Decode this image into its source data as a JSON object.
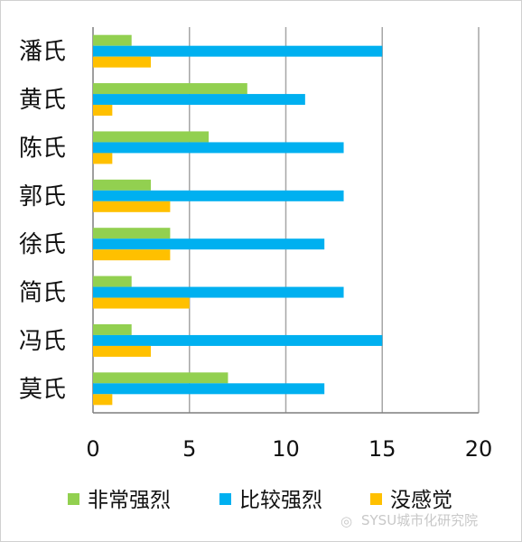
{
  "chart_data": {
    "type": "bar",
    "orientation": "horizontal",
    "categories": [
      "潘氏",
      "黄氏",
      "陈氏",
      "郭氏",
      "徐氏",
      "简氏",
      "冯氏",
      "莫氏"
    ],
    "series": [
      {
        "name": "非常强烈",
        "color": "#92d050",
        "values": [
          2,
          8,
          6,
          3,
          4,
          2,
          2,
          7
        ]
      },
      {
        "name": "比较强烈",
        "color": "#00b0f0",
        "values": [
          15,
          11,
          13,
          13,
          12,
          13,
          15,
          12
        ]
      },
      {
        "name": "没感觉",
        "color": "#ffc000",
        "values": [
          3,
          1,
          1,
          4,
          4,
          5,
          3,
          1
        ]
      }
    ],
    "xlim": [
      0,
      20
    ],
    "xticks": [
      0,
      5,
      10,
      15,
      20
    ],
    "grid": "vertical",
    "legend": "bottom"
  },
  "watermark": "SYSU城市化研究院",
  "colors": {
    "grid": "#a6a6a6",
    "axis": "#7f7f7f"
  }
}
